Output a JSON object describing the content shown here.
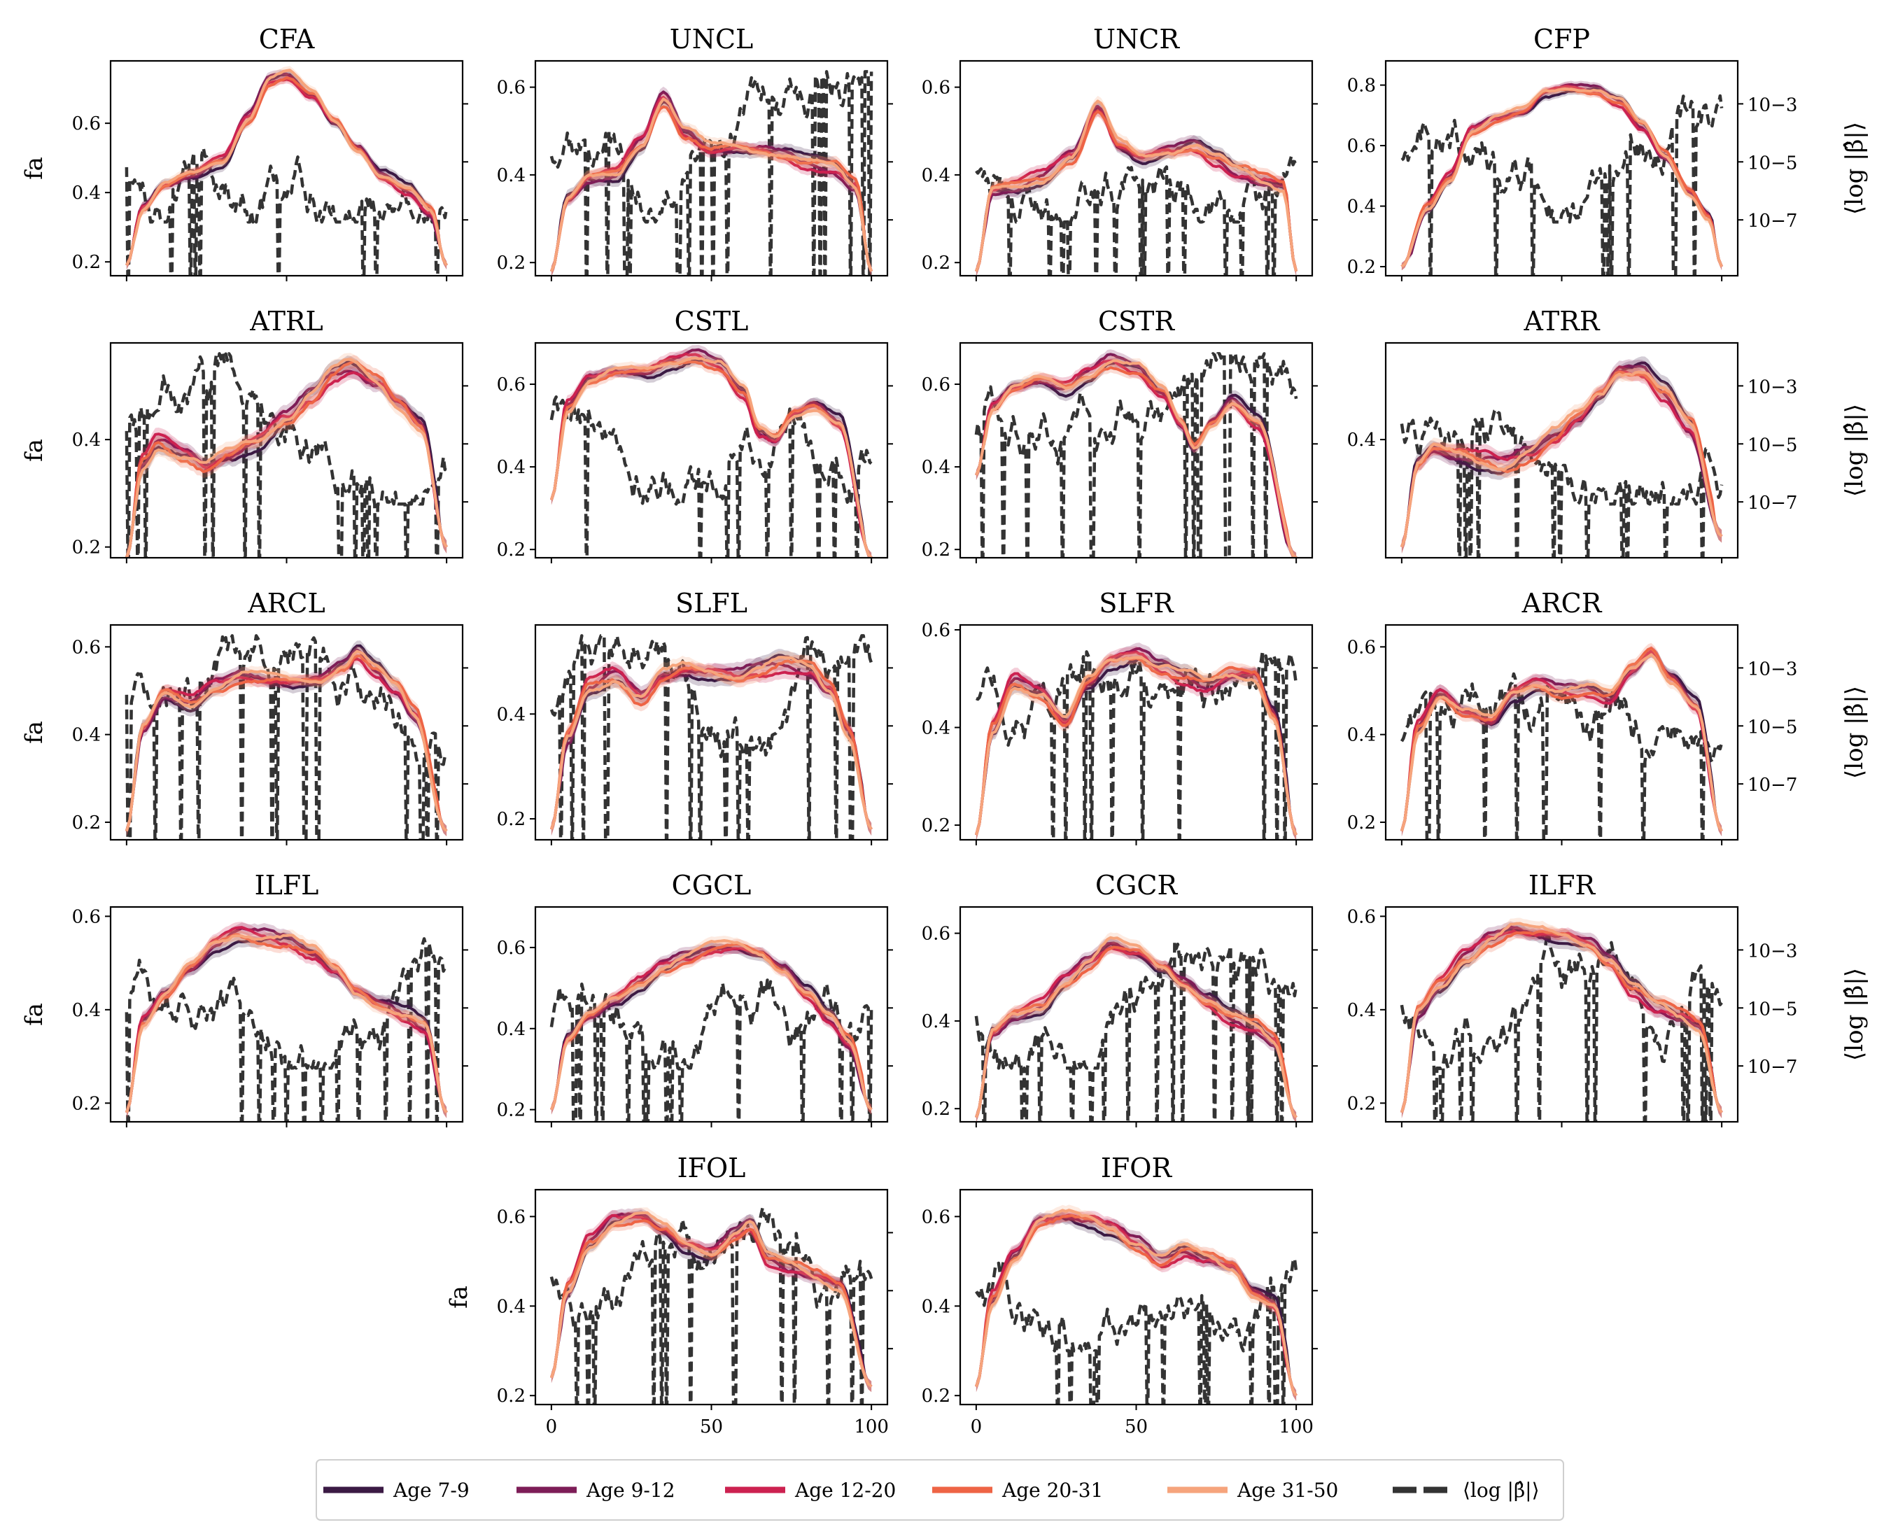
{
  "figure": {
    "colors": {
      "age_7_9": "#3b1a44",
      "age_9_12": "#7d1d57",
      "age_12_20": "#cc2150",
      "age_20_31": "#ee6445",
      "age_31_50": "#f6a47c",
      "beta": "#333333"
    }
  },
  "legend": {
    "entries": [
      {
        "label": "Age 7-9",
        "color": "#3b1a44",
        "style": "solid"
      },
      {
        "label": "Age 9-12",
        "color": "#7d1d57",
        "style": "solid"
      },
      {
        "label": "Age 12-20",
        "color": "#cc2150",
        "style": "solid"
      },
      {
        "label": "Age 20-31",
        "color": "#ee6445",
        "style": "solid"
      },
      {
        "label": "Age 31-50",
        "color": "#f6a47c",
        "style": "solid"
      },
      {
        "label": "⟨log |β̂|⟩",
        "color": "#333333",
        "style": "dashed"
      }
    ]
  },
  "chart_data": [
    {
      "type": "line",
      "title": "CFA",
      "ylabel": "fa",
      "ylim": [
        0.16,
        0.78
      ],
      "yticks": [
        0.2,
        0.4,
        0.6
      ],
      "xlim": [
        -5,
        105
      ],
      "xticks": [
        0,
        50,
        100
      ],
      "show_xticklabels": false,
      "y2label": "",
      "y2scale": "log",
      "age_knots": {
        "x": [
          0,
          5,
          12,
          20,
          30,
          38,
          45,
          50,
          58,
          65,
          72,
          80,
          88,
          95,
          100
        ],
        "y": [
          0.19,
          0.36,
          0.43,
          0.46,
          0.5,
          0.62,
          0.73,
          0.74,
          0.68,
          0.6,
          0.52,
          0.44,
          0.4,
          0.34,
          0.19
        ]
      }
    },
    {
      "type": "line",
      "title": "UNCL",
      "ylabel": "",
      "ylim": [
        0.17,
        0.66
      ],
      "yticks": [
        0.2,
        0.4,
        0.6
      ],
      "xlim": [
        -5,
        105
      ],
      "xticks": [
        0,
        50,
        100
      ],
      "show_xticklabels": false,
      "y2label": "",
      "y2scale": "log",
      "age_knots": {
        "x": [
          0,
          5,
          12,
          20,
          28,
          35,
          42,
          50,
          58,
          65,
          72,
          80,
          88,
          95,
          100
        ],
        "y": [
          0.18,
          0.35,
          0.4,
          0.41,
          0.48,
          0.58,
          0.5,
          0.46,
          0.46,
          0.45,
          0.44,
          0.42,
          0.41,
          0.37,
          0.18
        ]
      }
    },
    {
      "type": "line",
      "title": "UNCR",
      "ylabel": "",
      "ylim": [
        0.17,
        0.66
      ],
      "yticks": [
        0.2,
        0.4,
        0.6
      ],
      "xlim": [
        -5,
        105
      ],
      "xticks": [
        0,
        50,
        100
      ],
      "show_xticklabels": false,
      "y2label": "",
      "y2scale": "log",
      "age_knots": {
        "x": [
          0,
          5,
          12,
          20,
          30,
          38,
          45,
          52,
          60,
          68,
          75,
          82,
          90,
          96,
          100
        ],
        "y": [
          0.18,
          0.37,
          0.38,
          0.4,
          0.45,
          0.56,
          0.47,
          0.44,
          0.45,
          0.46,
          0.43,
          0.4,
          0.38,
          0.37,
          0.18
        ]
      }
    },
    {
      "type": "line",
      "title": "CFP",
      "ylabel": "",
      "ylim": [
        0.17,
        0.88
      ],
      "yticks": [
        0.2,
        0.4,
        0.6,
        0.8
      ],
      "xlim": [
        -5,
        105
      ],
      "xticks": [
        0,
        50,
        100
      ],
      "show_xticklabels": false,
      "y2label": "⟨log |β̂|⟩",
      "y2scale": "log",
      "y2ticks": [
        "10−3",
        "10−5",
        "10−7"
      ],
      "age_knots": {
        "x": [
          0,
          8,
          15,
          22,
          30,
          38,
          45,
          52,
          60,
          68,
          75,
          82,
          90,
          96,
          100
        ],
        "y": [
          0.2,
          0.4,
          0.5,
          0.66,
          0.7,
          0.72,
          0.78,
          0.79,
          0.78,
          0.74,
          0.66,
          0.56,
          0.44,
          0.36,
          0.2
        ]
      }
    },
    {
      "type": "line",
      "title": "ATRL",
      "ylabel": "fa",
      "ylim": [
        0.18,
        0.58
      ],
      "yticks": [
        0.2,
        0.4
      ],
      "xlim": [
        -5,
        105
      ],
      "xticks": [
        0,
        50,
        100
      ],
      "show_xticklabels": false,
      "y2label": "",
      "y2scale": "log",
      "age_knots": {
        "x": [
          0,
          5,
          10,
          18,
          25,
          32,
          40,
          50,
          58,
          65,
          70,
          78,
          85,
          92,
          100
        ],
        "y": [
          0.18,
          0.36,
          0.4,
          0.38,
          0.36,
          0.38,
          0.4,
          0.44,
          0.48,
          0.52,
          0.53,
          0.5,
          0.46,
          0.42,
          0.2
        ]
      }
    },
    {
      "type": "line",
      "title": "CSTL",
      "ylabel": "",
      "ylim": [
        0.18,
        0.7
      ],
      "yticks": [
        0.2,
        0.4,
        0.6
      ],
      "xlim": [
        -5,
        105
      ],
      "xticks": [
        0,
        50,
        100
      ],
      "show_xticklabels": false,
      "y2label": "",
      "y2scale": "log",
      "age_knots": {
        "x": [
          0,
          5,
          12,
          20,
          30,
          38,
          45,
          52,
          60,
          65,
          70,
          76,
          82,
          90,
          100
        ],
        "y": [
          0.32,
          0.55,
          0.62,
          0.64,
          0.64,
          0.66,
          0.67,
          0.65,
          0.58,
          0.48,
          0.46,
          0.52,
          0.54,
          0.5,
          0.18
        ]
      }
    },
    {
      "type": "line",
      "title": "CSTR",
      "ylabel": "",
      "ylim": [
        0.18,
        0.7
      ],
      "yticks": [
        0.2,
        0.4,
        0.6
      ],
      "xlim": [
        -5,
        105
      ],
      "xticks": [
        0,
        50,
        100
      ],
      "show_xticklabels": false,
      "y2label": "",
      "y2scale": "log",
      "age_knots": {
        "x": [
          0,
          5,
          12,
          20,
          28,
          35,
          42,
          50,
          58,
          64,
          68,
          74,
          80,
          88,
          100
        ],
        "y": [
          0.38,
          0.55,
          0.6,
          0.62,
          0.6,
          0.63,
          0.66,
          0.64,
          0.58,
          0.5,
          0.44,
          0.5,
          0.55,
          0.5,
          0.18
        ]
      }
    },
    {
      "type": "line",
      "title": "ATRR",
      "ylabel": "",
      "ylim": [
        0.18,
        0.58
      ],
      "yticks": [
        0.4
      ],
      "xlim": [
        -5,
        105
      ],
      "xticks": [
        0,
        50,
        100
      ],
      "show_xticklabels": false,
      "y2label": "⟨log |β̂|⟩",
      "y2scale": "log",
      "y2ticks": [
        "10−3",
        "10−5",
        "10−7"
      ],
      "age_knots": {
        "x": [
          0,
          5,
          10,
          18,
          25,
          32,
          40,
          48,
          55,
          62,
          68,
          75,
          82,
          90,
          100
        ],
        "y": [
          0.2,
          0.36,
          0.39,
          0.38,
          0.37,
          0.36,
          0.38,
          0.41,
          0.44,
          0.48,
          0.52,
          0.52,
          0.48,
          0.42,
          0.22
        ]
      }
    },
    {
      "type": "line",
      "title": "ARCL",
      "ylabel": "fa",
      "ylim": [
        0.16,
        0.65
      ],
      "yticks": [
        0.2,
        0.4,
        0.6
      ],
      "xlim": [
        -5,
        105
      ],
      "xticks": [
        0,
        50,
        100
      ],
      "show_xticklabels": false,
      "y2label": "",
      "y2scale": "log",
      "age_knots": {
        "x": [
          0,
          5,
          12,
          20,
          28,
          36,
          45,
          52,
          60,
          68,
          72,
          78,
          84,
          90,
          100
        ],
        "y": [
          0.18,
          0.42,
          0.5,
          0.48,
          0.52,
          0.54,
          0.53,
          0.52,
          0.52,
          0.55,
          0.58,
          0.54,
          0.5,
          0.44,
          0.18
        ]
      }
    },
    {
      "type": "line",
      "title": "SLFL",
      "ylabel": "",
      "ylim": [
        0.16,
        0.57
      ],
      "yticks": [
        0.2,
        0.4
      ],
      "xlim": [
        -5,
        105
      ],
      "xticks": [
        0,
        50,
        100
      ],
      "show_xticklabels": false,
      "y2label": "",
      "y2scale": "log",
      "age_knots": {
        "x": [
          0,
          5,
          12,
          20,
          28,
          35,
          42,
          50,
          58,
          65,
          72,
          80,
          87,
          93,
          100
        ],
        "y": [
          0.18,
          0.36,
          0.46,
          0.48,
          0.44,
          0.48,
          0.49,
          0.48,
          0.47,
          0.48,
          0.49,
          0.48,
          0.44,
          0.36,
          0.18
        ]
      }
    },
    {
      "type": "line",
      "title": "SLFR",
      "ylabel": "",
      "ylim": [
        0.17,
        0.61
      ],
      "yticks": [
        0.2,
        0.4,
        0.6
      ],
      "xlim": [
        -5,
        105
      ],
      "xticks": [
        0,
        50,
        100
      ],
      "show_xticklabels": false,
      "y2label": "",
      "y2scale": "log",
      "age_knots": {
        "x": [
          0,
          5,
          12,
          20,
          28,
          35,
          42,
          50,
          58,
          65,
          72,
          80,
          87,
          93,
          100
        ],
        "y": [
          0.18,
          0.4,
          0.5,
          0.48,
          0.42,
          0.5,
          0.54,
          0.55,
          0.52,
          0.5,
          0.48,
          0.5,
          0.5,
          0.42,
          0.18
        ]
      }
    },
    {
      "type": "line",
      "title": "ARCR",
      "ylabel": "",
      "ylim": [
        0.16,
        0.65
      ],
      "yticks": [
        0.2,
        0.4,
        0.6
      ],
      "xlim": [
        -5,
        105
      ],
      "xticks": [
        0,
        50,
        100
      ],
      "show_xticklabels": false,
      "y2label": "⟨log |β̂|⟩",
      "y2scale": "log",
      "y2ticks": [
        "10−3",
        "10−5",
        "10−7"
      ],
      "age_knots": {
        "x": [
          0,
          5,
          12,
          20,
          28,
          35,
          42,
          50,
          58,
          65,
          72,
          78,
          84,
          92,
          100
        ],
        "y": [
          0.18,
          0.42,
          0.5,
          0.46,
          0.44,
          0.5,
          0.52,
          0.5,
          0.5,
          0.48,
          0.54,
          0.58,
          0.52,
          0.46,
          0.18
        ]
      }
    },
    {
      "type": "line",
      "title": "ILFL",
      "ylabel": "fa",
      "ylim": [
        0.16,
        0.62
      ],
      "yticks": [
        0.2,
        0.4,
        0.6
      ],
      "xlim": [
        -5,
        105
      ],
      "xticks": [
        0,
        50,
        100
      ],
      "show_xticklabels": false,
      "y2label": "",
      "y2scale": "log",
      "age_knots": {
        "x": [
          0,
          5,
          12,
          20,
          28,
          35,
          42,
          50,
          58,
          65,
          72,
          80,
          87,
          93,
          100
        ],
        "y": [
          0.18,
          0.38,
          0.44,
          0.5,
          0.55,
          0.57,
          0.56,
          0.55,
          0.52,
          0.48,
          0.43,
          0.4,
          0.38,
          0.36,
          0.18
        ]
      }
    },
    {
      "type": "line",
      "title": "CGCL",
      "ylabel": "",
      "ylim": [
        0.17,
        0.7
      ],
      "yticks": [
        0.2,
        0.4,
        0.6
      ],
      "xlim": [
        -5,
        105
      ],
      "xticks": [
        0,
        50,
        100
      ],
      "show_xticklabels": false,
      "y2label": "",
      "y2scale": "log",
      "age_knots": {
        "x": [
          0,
          5,
          12,
          20,
          28,
          35,
          42,
          50,
          58,
          65,
          72,
          80,
          87,
          93,
          100
        ],
        "y": [
          0.2,
          0.38,
          0.44,
          0.48,
          0.52,
          0.56,
          0.58,
          0.6,
          0.6,
          0.58,
          0.54,
          0.48,
          0.42,
          0.36,
          0.2
        ]
      }
    },
    {
      "type": "line",
      "title": "CGCR",
      "ylabel": "",
      "ylim": [
        0.17,
        0.66
      ],
      "yticks": [
        0.2,
        0.4,
        0.6
      ],
      "xlim": [
        -5,
        105
      ],
      "xticks": [
        0,
        50,
        100
      ],
      "show_xticklabels": false,
      "y2label": "",
      "y2scale": "log",
      "age_knots": {
        "x": [
          0,
          5,
          12,
          20,
          28,
          35,
          42,
          50,
          58,
          65,
          72,
          80,
          87,
          93,
          100
        ],
        "y": [
          0.18,
          0.38,
          0.42,
          0.44,
          0.5,
          0.54,
          0.58,
          0.56,
          0.52,
          0.48,
          0.44,
          0.4,
          0.38,
          0.35,
          0.18
        ]
      }
    },
    {
      "type": "line",
      "title": "ILFR",
      "ylabel": "",
      "ylim": [
        0.16,
        0.62
      ],
      "yticks": [
        0.2,
        0.4,
        0.6
      ],
      "xlim": [
        -5,
        105
      ],
      "xticks": [
        0,
        50,
        100
      ],
      "show_xticklabels": false,
      "y2label": "⟨log |β̂|⟩",
      "y2scale": "log",
      "y2ticks": [
        "10−3",
        "10−5",
        "10−7"
      ],
      "age_knots": {
        "x": [
          0,
          5,
          12,
          20,
          28,
          35,
          42,
          50,
          58,
          65,
          72,
          80,
          87,
          93,
          100
        ],
        "y": [
          0.18,
          0.4,
          0.46,
          0.52,
          0.56,
          0.58,
          0.57,
          0.56,
          0.54,
          0.5,
          0.44,
          0.4,
          0.38,
          0.36,
          0.18
        ]
      }
    },
    {
      "type": "line",
      "title": "IFOL",
      "ylabel": "fa",
      "ylim": [
        0.18,
        0.66
      ],
      "yticks": [
        0.2,
        0.4,
        0.6
      ],
      "xlim": [
        -5,
        105
      ],
      "xticks": [
        0,
        50,
        100
      ],
      "show_xticklabels": true,
      "y2label": "",
      "y2scale": "log",
      "age_knots": {
        "x": [
          0,
          5,
          12,
          20,
          28,
          35,
          42,
          50,
          58,
          62,
          68,
          75,
          82,
          90,
          100
        ],
        "y": [
          0.24,
          0.44,
          0.55,
          0.6,
          0.61,
          0.58,
          0.54,
          0.52,
          0.56,
          0.58,
          0.5,
          0.48,
          0.46,
          0.44,
          0.22
        ]
      }
    },
    {
      "type": "line",
      "title": "IFOR",
      "ylabel": "",
      "ylim": [
        0.18,
        0.66
      ],
      "yticks": [
        0.2,
        0.4,
        0.6
      ],
      "xlim": [
        -5,
        105
      ],
      "xticks": [
        0,
        50,
        100
      ],
      "show_xticklabels": true,
      "y2label": "",
      "y2scale": "log",
      "age_knots": {
        "x": [
          0,
          5,
          12,
          20,
          28,
          35,
          42,
          50,
          58,
          65,
          72,
          80,
          87,
          93,
          100
        ],
        "y": [
          0.22,
          0.42,
          0.52,
          0.6,
          0.61,
          0.6,
          0.58,
          0.54,
          0.5,
          0.52,
          0.5,
          0.48,
          0.42,
          0.4,
          0.2
        ]
      }
    }
  ]
}
